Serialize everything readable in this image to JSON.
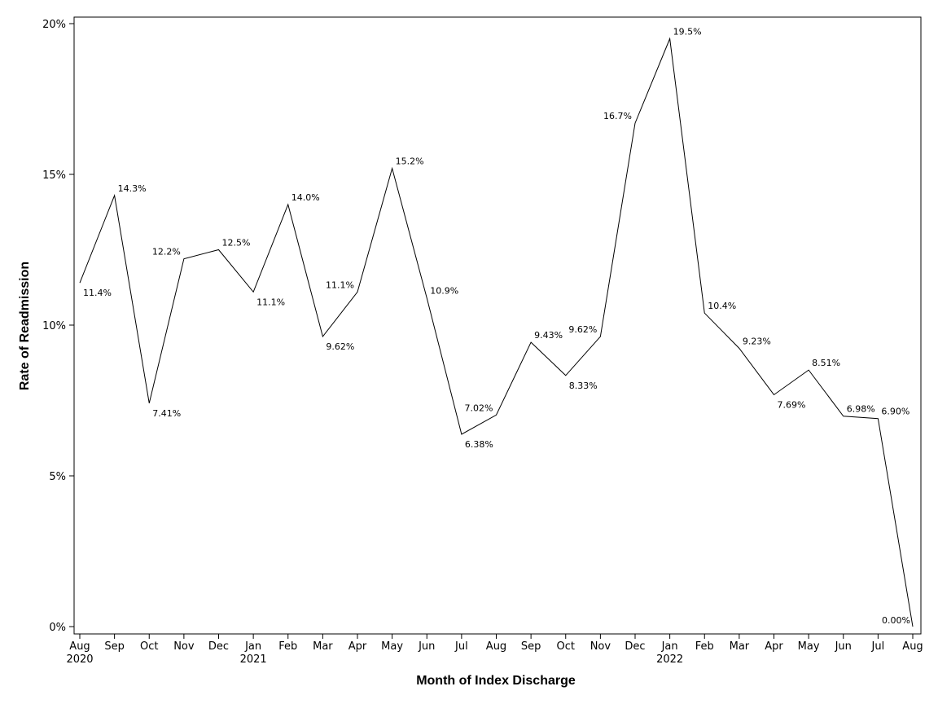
{
  "chart_data": {
    "type": "line",
    "title": "",
    "xlabel": "Month of Index Discharge",
    "ylabel": "Rate of Readmission",
    "ylim": [
      0,
      20
    ],
    "y_ticks": [
      0,
      5,
      10,
      15,
      20
    ],
    "y_tick_labels": [
      "0%",
      "5%",
      "10%",
      "15%",
      "20%"
    ],
    "grid": false,
    "legend": "none",
    "line_color": "#000000",
    "categories": [
      "Aug",
      "Sep",
      "Oct",
      "Nov",
      "Dec",
      "Jan",
      "Feb",
      "Mar",
      "Apr",
      "May",
      "Jun",
      "Jul",
      "Aug",
      "Sep",
      "Oct",
      "Nov",
      "Dec",
      "Jan",
      "Feb",
      "Mar",
      "Apr",
      "May",
      "Jun",
      "Jul",
      "Aug"
    ],
    "year_labels": [
      "2020",
      "",
      "",
      "",
      "",
      "2021",
      "",
      "",
      "",
      "",
      "",
      "",
      "",
      "",
      "",
      "",
      "",
      "2022",
      "",
      "",
      "",
      "",
      "",
      "",
      ""
    ],
    "values": [
      11.4,
      14.3,
      7.41,
      12.2,
      12.5,
      11.1,
      14.0,
      9.62,
      11.1,
      15.2,
      10.9,
      6.38,
      7.02,
      9.43,
      8.33,
      9.62,
      16.7,
      19.5,
      10.4,
      9.23,
      7.69,
      8.51,
      6.98,
      6.9,
      0.0
    ],
    "value_labels": [
      "11.4%",
      "14.3%",
      "7.41%",
      "12.2%",
      "12.5%",
      "11.1%",
      "14.0%",
      "9.62%",
      "11.1%",
      "15.2%",
      "10.9%",
      "6.38%",
      "7.02%",
      "9.43%",
      "8.33%",
      "9.62%",
      "16.7%",
      "19.5%",
      "10.4%",
      "9.23%",
      "7.69%",
      "8.51%",
      "6.98%",
      "6.90%",
      "0.00%"
    ]
  }
}
